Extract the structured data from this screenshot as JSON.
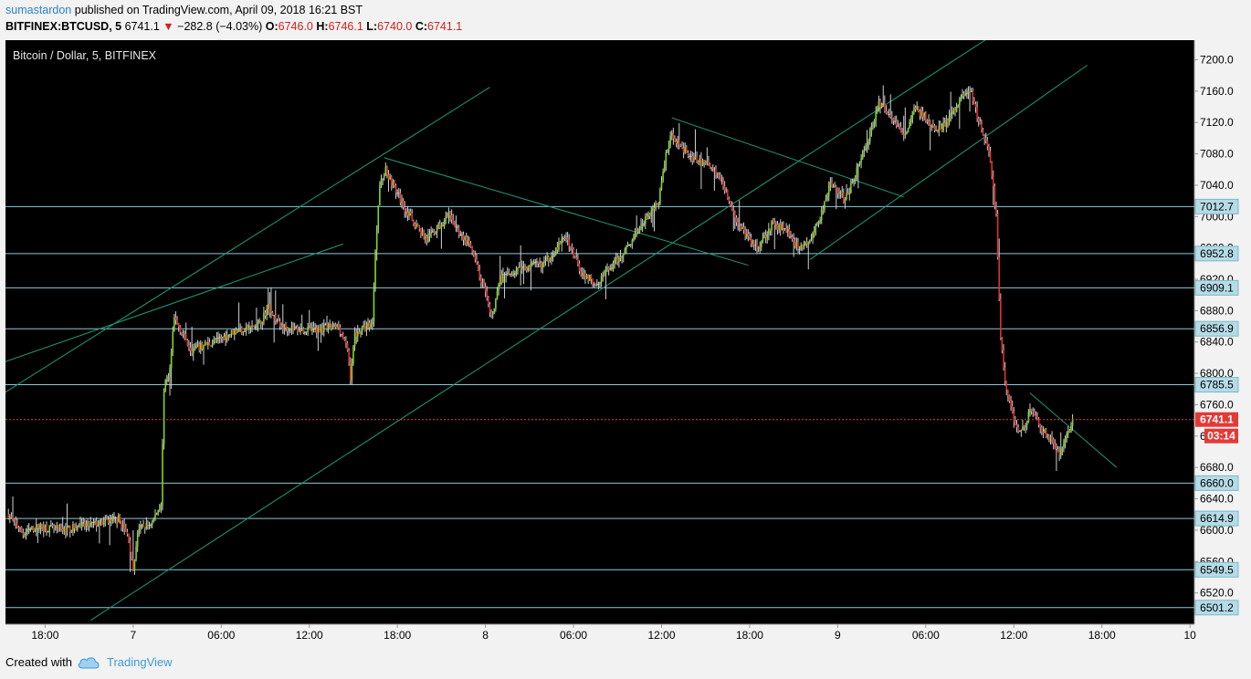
{
  "header": {
    "user": "sumastardon",
    "published_text": "published on TradingView.com, April 09, 2018 16:21 BST",
    "symbol": "BITFINEX:BTCUSD, 5",
    "last": "6741.1",
    "change": "−282.8 (−4.03%)",
    "o_label": "O:",
    "o_value": "6746.0",
    "h_label": "H:",
    "h_value": "6746.1",
    "l_label": "L:",
    "l_value": "6740.0",
    "c_label": "C:",
    "c_value": "6741.1"
  },
  "footer": {
    "created_with": "Created with",
    "brand": "TradingView"
  },
  "colors": {
    "background": "#000000",
    "up": "#7fd625",
    "down": "#e03030",
    "neutral": "#d0d0d0",
    "trendline": "#1e9c78",
    "hline": "#8ec9d6",
    "price_line": "#e04040",
    "axis_text": "#000000"
  },
  "chart_data": {
    "type": "candlestick",
    "title": "Bitcoin / Dollar, 5, BITFINEX",
    "ylim": [
      6480,
      7225
    ],
    "y_ticks": [
      6520,
      6560,
      6600,
      6640,
      6680,
      6720,
      6760,
      6800,
      6840,
      6880,
      6920,
      6960,
      7000,
      7040,
      7080,
      7120,
      7160,
      7200
    ],
    "y_tick_labels": [
      "6520.0",
      "6560.0",
      "6600.0",
      "6640.0",
      "6680.0",
      "6720.0",
      "6760.0",
      "6800.0",
      "6840.0",
      "6880.0",
      "6920.0",
      "6960.0",
      "7000.0",
      "7040.0",
      "7080.0",
      "7120.0",
      "7160.0",
      "7200.0"
    ],
    "x_range_hours": [
      -0.2,
      80.8
    ],
    "x_ticks": [
      {
        "h": 2.5,
        "label": "18:00"
      },
      {
        "h": 8.5,
        "label": "7"
      },
      {
        "h": 14.5,
        "label": "06:00"
      },
      {
        "h": 20.5,
        "label": "12:00"
      },
      {
        "h": 26.5,
        "label": "18:00"
      },
      {
        "h": 32.5,
        "label": "8"
      },
      {
        "h": 38.5,
        "label": "06:00"
      },
      {
        "h": 44.5,
        "label": "12:00"
      },
      {
        "h": 50.5,
        "label": "18:00"
      },
      {
        "h": 56.5,
        "label": "9"
      },
      {
        "h": 62.5,
        "label": "06:00"
      },
      {
        "h": 68.5,
        "label": "12:00"
      },
      {
        "h": 74.5,
        "label": "18:00"
      },
      {
        "h": 80.5,
        "label": "10"
      }
    ],
    "horizontal_levels": [
      {
        "value": 7012.7,
        "label": "7012.7"
      },
      {
        "value": 6952.8,
        "label": "6952.8"
      },
      {
        "value": 6909.1,
        "label": "6909.1"
      },
      {
        "value": 6856.9,
        "label": "6856.9"
      },
      {
        "value": 6785.5,
        "label": "6785.5"
      },
      {
        "value": 6660.0,
        "label": "6660.0"
      },
      {
        "value": 6614.9,
        "label": "6614.9"
      },
      {
        "value": 6549.5,
        "label": "6549.5"
      },
      {
        "value": 6501.2,
        "label": "6501.2"
      }
    ],
    "current_price": {
      "value": 6741.1,
      "label": "6741.1",
      "countdown": "03:14"
    },
    "price_path": [
      {
        "h": 0.0,
        "p": 6620
      },
      {
        "h": 1.0,
        "p": 6595
      },
      {
        "h": 2.0,
        "p": 6605
      },
      {
        "h": 3.5,
        "p": 6600
      },
      {
        "h": 5.0,
        "p": 6605
      },
      {
        "h": 6.5,
        "p": 6610
      },
      {
        "h": 7.5,
        "p": 6615
      },
      {
        "h": 8.2,
        "p": 6590
      },
      {
        "h": 8.5,
        "p": 6545
      },
      {
        "h": 8.8,
        "p": 6600
      },
      {
        "h": 9.8,
        "p": 6610
      },
      {
        "h": 10.4,
        "p": 6635
      },
      {
        "h": 10.6,
        "p": 6780
      },
      {
        "h": 11.0,
        "p": 6805
      },
      {
        "h": 11.3,
        "p": 6870
      },
      {
        "h": 12.5,
        "p": 6830
      },
      {
        "h": 14.0,
        "p": 6840
      },
      {
        "h": 15.5,
        "p": 6855
      },
      {
        "h": 17.0,
        "p": 6860
      },
      {
        "h": 17.7,
        "p": 6885
      },
      {
        "h": 18.5,
        "p": 6860
      },
      {
        "h": 20.5,
        "p": 6855
      },
      {
        "h": 22.5,
        "p": 6860
      },
      {
        "h": 23.1,
        "p": 6830
      },
      {
        "h": 23.3,
        "p": 6795
      },
      {
        "h": 23.6,
        "p": 6850
      },
      {
        "h": 24.8,
        "p": 6865
      },
      {
        "h": 25.0,
        "p": 6960
      },
      {
        "h": 25.3,
        "p": 7040
      },
      {
        "h": 25.7,
        "p": 7060
      },
      {
        "h": 27.0,
        "p": 7010
      },
      {
        "h": 28.5,
        "p": 6970
      },
      {
        "h": 30.0,
        "p": 7000
      },
      {
        "h": 31.5,
        "p": 6960
      },
      {
        "h": 32.5,
        "p": 6900
      },
      {
        "h": 32.9,
        "p": 6870
      },
      {
        "h": 33.5,
        "p": 6920
      },
      {
        "h": 35.0,
        "p": 6935
      },
      {
        "h": 36.5,
        "p": 6940
      },
      {
        "h": 38.0,
        "p": 6975
      },
      {
        "h": 39.0,
        "p": 6930
      },
      {
        "h": 40.0,
        "p": 6915
      },
      {
        "h": 41.5,
        "p": 6945
      },
      {
        "h": 43.0,
        "p": 6985
      },
      {
        "h": 44.3,
        "p": 7020
      },
      {
        "h": 44.8,
        "p": 7080
      },
      {
        "h": 45.2,
        "p": 7105
      },
      {
        "h": 46.5,
        "p": 7075
      },
      {
        "h": 47.8,
        "p": 7065
      },
      {
        "h": 48.5,
        "p": 7050
      },
      {
        "h": 49.5,
        "p": 7000
      },
      {
        "h": 50.3,
        "p": 6975
      },
      {
        "h": 51.0,
        "p": 6960
      },
      {
        "h": 52.0,
        "p": 6990
      },
      {
        "h": 53.0,
        "p": 6985
      },
      {
        "h": 53.8,
        "p": 6960
      },
      {
        "h": 54.5,
        "p": 6965
      },
      {
        "h": 55.3,
        "p": 7000
      },
      {
        "h": 56.0,
        "p": 7045
      },
      {
        "h": 57.0,
        "p": 7020
      },
      {
        "h": 57.8,
        "p": 7060
      },
      {
        "h": 58.6,
        "p": 7100
      },
      {
        "h": 59.3,
        "p": 7145
      },
      {
        "h": 60.2,
        "p": 7130
      },
      {
        "h": 61.0,
        "p": 7100
      },
      {
        "h": 61.8,
        "p": 7140
      },
      {
        "h": 62.7,
        "p": 7120
      },
      {
        "h": 63.5,
        "p": 7110
      },
      {
        "h": 64.3,
        "p": 7130
      },
      {
        "h": 65.0,
        "p": 7155
      },
      {
        "h": 65.6,
        "p": 7160
      },
      {
        "h": 66.1,
        "p": 7120
      },
      {
        "h": 66.6,
        "p": 7095
      },
      {
        "h": 66.9,
        "p": 7070
      },
      {
        "h": 67.3,
        "p": 7000
      },
      {
        "h": 67.6,
        "p": 6840
      },
      {
        "h": 68.0,
        "p": 6780
      },
      {
        "h": 68.5,
        "p": 6740
      },
      {
        "h": 69.0,
        "p": 6725
      },
      {
        "h": 69.7,
        "p": 6755
      },
      {
        "h": 70.4,
        "p": 6730
      },
      {
        "h": 71.0,
        "p": 6715
      },
      {
        "h": 71.6,
        "p": 6700
      },
      {
        "h": 72.2,
        "p": 6725
      },
      {
        "h": 72.5,
        "p": 6741
      }
    ],
    "trendlines": [
      {
        "from": {
          "h": -0.2,
          "p": 6776
        },
        "to": {
          "h": 32.8,
          "p": 7165
        }
      },
      {
        "from": {
          "h": -0.2,
          "p": 6815
        },
        "to": {
          "h": 22.8,
          "p": 6965
        }
      },
      {
        "from": {
          "h": 5.6,
          "p": 6485
        },
        "to": {
          "h": 67.2,
          "p": 7233
        }
      },
      {
        "from": {
          "h": 54.6,
          "p": 6945
        },
        "to": {
          "h": 73.5,
          "p": 7193
        }
      },
      {
        "from": {
          "h": 25.6,
          "p": 7075
        },
        "to": {
          "h": 50.4,
          "p": 6938
        }
      },
      {
        "from": {
          "h": 45.2,
          "p": 7126
        },
        "to": {
          "h": 61.0,
          "p": 7025
        }
      },
      {
        "from": {
          "h": 69.6,
          "p": 6775
        },
        "to": {
          "h": 75.5,
          "p": 6680
        }
      }
    ]
  }
}
